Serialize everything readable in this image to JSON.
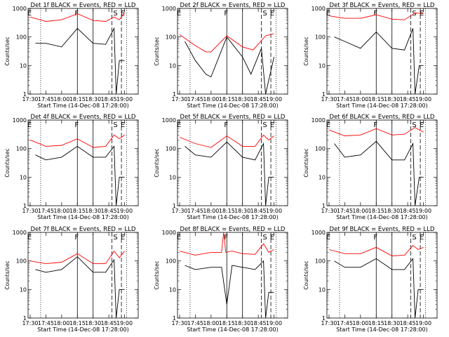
{
  "figure": {
    "xlabel": "Start Time (14-Dec-08 17:28:00)",
    "ylabel": "Counts/sec"
  },
  "colors": {
    "events": "#000000",
    "lld": "#ff0000"
  },
  "chart_data": [
    {
      "type": "line",
      "title": "Det 1f BLACK = Events, RED = LLD",
      "xlabel": "Start Time (14-Dec-08 17:28:00)",
      "ylabel": "Counts/sec",
      "yscale": "log",
      "ylim": [
        1,
        1000
      ],
      "x_ticks": [
        "17:30",
        "17:45",
        "18:00",
        "18:15",
        "18:30",
        "18:45",
        "19:00"
      ],
      "y_ticks": [
        "1",
        "10",
        "100",
        "1000"
      ],
      "markers": [
        {
          "label": "E",
          "x": "17:30"
        },
        {
          "label": "F",
          "x": "18:15"
        },
        {
          "label": "S",
          "x": "18:52"
        },
        {
          "label": "E",
          "x": "18:59"
        }
      ],
      "series": [
        {
          "color": "#000000",
          "x": [
            "17:35",
            "17:45",
            "18:00",
            "18:15",
            "18:30",
            "18:42",
            "18:50",
            "18:52",
            "18:55",
            "19:00"
          ],
          "y": [
            60,
            60,
            45,
            200,
            60,
            55,
            200,
            1,
            15,
            15
          ]
        },
        {
          "color": "#ff0000",
          "x": [
            "17:30",
            "17:45",
            "18:00",
            "18:15",
            "18:30",
            "18:42",
            "18:50",
            "18:55",
            "19:00"
          ],
          "y": [
            500,
            350,
            400,
            650,
            380,
            350,
            500,
            400,
            700
          ]
        }
      ]
    },
    {
      "type": "line",
      "title": "Det 2f BLACK = Events, RED = LLD",
      "xlabel": "Start Time (14-Dec-08 17:28:00)",
      "ylabel": "Counts/sec",
      "yscale": "log",
      "ylim": [
        1,
        1000
      ],
      "x_ticks": [
        "17:30",
        "17:45",
        "18:00",
        "18:15",
        "18:30",
        "18:45",
        "19:00"
      ],
      "y_ticks": [
        "1",
        "10",
        "100",
        "1000"
      ],
      "markers": [
        {
          "label": "E",
          "x": "17:30"
        },
        {
          "label": "F",
          "x": "18:15"
        },
        {
          "label": "S",
          "x": "18:52"
        },
        {
          "label": "E",
          "x": "18:59"
        }
      ],
      "series": [
        {
          "color": "#000000",
          "x": [
            "17:35",
            "17:45",
            "17:55",
            "18:00",
            "18:15",
            "18:30",
            "18:38",
            "18:48",
            "18:52",
            "19:00"
          ],
          "y": [
            70,
            15,
            5,
            4,
            100,
            20,
            5,
            40,
            1,
            20
          ]
        },
        {
          "color": "#ff0000",
          "x": [
            "17:30",
            "17:45",
            "17:55",
            "18:00",
            "18:15",
            "18:30",
            "18:40",
            "18:52",
            "19:00"
          ],
          "y": [
            120,
            50,
            30,
            30,
            110,
            45,
            35,
            110,
            130
          ]
        }
      ]
    },
    {
      "type": "line",
      "title": "Det 3f BLACK = Events, RED = LLD",
      "xlabel": "Start Time (14-Dec-08 17:28:00)",
      "ylabel": "Counts/sec",
      "yscale": "log",
      "ylim": [
        1,
        1000
      ],
      "x_ticks": [
        "17:30",
        "17:45",
        "18:00",
        "18:15",
        "18:30",
        "18:45",
        "19:00"
      ],
      "y_ticks": [
        "1",
        "10",
        "100",
        "1000"
      ],
      "markers": [
        {
          "label": "E",
          "x": "17:30"
        },
        {
          "label": "F",
          "x": "18:15"
        },
        {
          "label": "S",
          "x": "18:52"
        },
        {
          "label": "E",
          "x": "18:59"
        }
      ],
      "series": [
        {
          "color": "#000000",
          "x": [
            "17:35",
            "17:45",
            "18:00",
            "18:15",
            "18:30",
            "18:42",
            "18:50",
            "18:52",
            "18:56",
            "19:00"
          ],
          "y": [
            100,
            70,
            40,
            150,
            40,
            35,
            200,
            1,
            10,
            10
          ]
        },
        {
          "color": "#ff0000",
          "x": [
            "17:30",
            "17:45",
            "18:00",
            "18:15",
            "18:30",
            "18:42",
            "18:52",
            "19:00"
          ],
          "y": [
            550,
            450,
            450,
            600,
            420,
            400,
            700,
            650
          ]
        }
      ]
    },
    {
      "type": "line",
      "title": "Det 4f BLACK = Events, RED = LLD",
      "xlabel": "Start Time (14-Dec-08 17:28:00)",
      "ylabel": "Counts/sec",
      "yscale": "log",
      "ylim": [
        1,
        1000
      ],
      "x_ticks": [
        "17:30",
        "17:45",
        "18:00",
        "18:15",
        "18:30",
        "18:45",
        "19:00"
      ],
      "y_ticks": [
        "1",
        "10",
        "100",
        "1000"
      ],
      "markers": [
        {
          "label": "E",
          "x": "17:30"
        },
        {
          "label": "F",
          "x": "18:15"
        },
        {
          "label": "S",
          "x": "18:52"
        },
        {
          "label": "E",
          "x": "18:59"
        }
      ],
      "series": [
        {
          "color": "#000000",
          "x": [
            "17:35",
            "17:45",
            "18:00",
            "18:15",
            "18:30",
            "18:42",
            "18:50",
            "18:52",
            "18:55",
            "19:00"
          ],
          "y": [
            60,
            40,
            50,
            120,
            50,
            50,
            120,
            1,
            10,
            10
          ]
        },
        {
          "color": "#ff0000",
          "x": [
            "17:30",
            "17:45",
            "18:00",
            "18:15",
            "18:30",
            "18:42",
            "18:50",
            "18:55",
            "19:00"
          ],
          "y": [
            200,
            120,
            130,
            220,
            110,
            120,
            300,
            220,
            300
          ]
        }
      ]
    },
    {
      "type": "line",
      "title": "Det 5f BLACK = Events, RED = LLD",
      "xlabel": "Start Time (14-Dec-08 17:28:00)",
      "ylabel": "Counts/sec",
      "yscale": "log",
      "ylim": [
        1,
        1000
      ],
      "x_ticks": [
        "17:30",
        "17:45",
        "18:00",
        "18:15",
        "18:30",
        "18:45",
        "19:00"
      ],
      "y_ticks": [
        "1",
        "10",
        "100",
        "1000"
      ],
      "markers": [
        {
          "label": "E",
          "x": "17:30"
        },
        {
          "label": "F",
          "x": "18:15"
        },
        {
          "label": "S",
          "x": "18:52"
        },
        {
          "label": "E",
          "x": "18:59"
        }
      ],
      "series": [
        {
          "color": "#000000",
          "x": [
            "17:35",
            "17:45",
            "18:00",
            "18:15",
            "18:30",
            "18:42",
            "18:50",
            "18:52",
            "18:55",
            "19:00"
          ],
          "y": [
            120,
            60,
            50,
            170,
            50,
            40,
            150,
            1,
            10,
            10
          ]
        },
        {
          "color": "#ff0000",
          "x": [
            "17:30",
            "17:45",
            "18:00",
            "18:15",
            "18:30",
            "18:42",
            "18:50",
            "18:55",
            "19:00"
          ],
          "y": [
            250,
            150,
            110,
            280,
            120,
            120,
            300,
            200,
            280
          ]
        }
      ]
    },
    {
      "type": "line",
      "title": "Det 6f BLACK = Events, RED = LLD",
      "xlabel": "Start Time (14-Dec-08 17:28:00)",
      "ylabel": "Counts/sec",
      "yscale": "log",
      "ylim": [
        1,
        1000
      ],
      "x_ticks": [
        "17:30",
        "17:45",
        "18:00",
        "18:15",
        "18:30",
        "18:45",
        "19:00"
      ],
      "y_ticks": [
        "1",
        "10",
        "100",
        "1000"
      ],
      "markers": [
        {
          "label": "E",
          "x": "17:30"
        },
        {
          "label": "F",
          "x": "18:15"
        },
        {
          "label": "S",
          "x": "18:52"
        },
        {
          "label": "E",
          "x": "18:59"
        }
      ],
      "series": [
        {
          "color": "#000000",
          "x": [
            "17:35",
            "17:45",
            "18:00",
            "18:15",
            "18:30",
            "18:42",
            "18:50",
            "18:52",
            "18:56",
            "19:00"
          ],
          "y": [
            150,
            50,
            60,
            180,
            40,
            40,
            150,
            1,
            10,
            10
          ]
        },
        {
          "color": "#ff0000",
          "x": [
            "17:30",
            "17:45",
            "18:00",
            "18:15",
            "18:30",
            "18:42",
            "18:52",
            "19:00"
          ],
          "y": [
            450,
            280,
            300,
            500,
            300,
            320,
            550,
            380
          ]
        }
      ]
    },
    {
      "type": "line",
      "title": "Det 7f BLACK = Events, RED = LLD",
      "xlabel": "Start Time (14-Dec-08 17:28:00)",
      "ylabel": "Counts/sec",
      "yscale": "log",
      "ylim": [
        1,
        1000
      ],
      "x_ticks": [
        "17:30",
        "17:45",
        "18:00",
        "18:15",
        "18:30",
        "18:45",
        "19:00"
      ],
      "y_ticks": [
        "1",
        "10",
        "100",
        "1000"
      ],
      "markers": [
        {
          "label": "E",
          "x": "17:30"
        },
        {
          "label": "F",
          "x": "18:15"
        },
        {
          "label": "S",
          "x": "18:52"
        },
        {
          "label": "E",
          "x": "18:59"
        }
      ],
      "series": [
        {
          "color": "#000000",
          "x": [
            "17:35",
            "17:45",
            "18:00",
            "18:15",
            "18:30",
            "18:42",
            "18:50",
            "18:52",
            "18:55",
            "19:00"
          ],
          "y": [
            50,
            40,
            50,
            140,
            40,
            40,
            110,
            1,
            10,
            10
          ]
        },
        {
          "color": "#ff0000",
          "x": [
            "17:30",
            "17:45",
            "18:00",
            "18:15",
            "18:30",
            "18:42",
            "18:50",
            "18:55",
            "19:00"
          ],
          "y": [
            100,
            80,
            90,
            180,
            80,
            80,
            220,
            130,
            220
          ]
        }
      ]
    },
    {
      "type": "line",
      "title": "Det 8f BLACK = Events, RED = LLD",
      "xlabel": "Start Time (14-Dec-08 17:28:00)",
      "ylabel": "Counts/sec",
      "yscale": "log",
      "ylim": [
        1,
        1000
      ],
      "x_ticks": [
        "17:30",
        "17:45",
        "18:00",
        "18:15",
        "18:30",
        "18:45",
        "19:00"
      ],
      "y_ticks": [
        "1",
        "10",
        "100",
        "1000"
      ],
      "markers": [
        {
          "label": "E",
          "x": "17:30"
        },
        {
          "label": "F",
          "x": "18:15"
        },
        {
          "label": "S",
          "x": "18:52"
        },
        {
          "label": "E",
          "x": "18:59"
        }
      ],
      "series": [
        {
          "color": "#000000",
          "x": [
            "17:35",
            "17:45",
            "18:00",
            "18:10",
            "18:15",
            "18:20",
            "18:30",
            "18:42",
            "18:50",
            "18:52",
            "18:55",
            "19:00"
          ],
          "y": [
            70,
            50,
            60,
            60,
            3,
            70,
            60,
            50,
            100,
            1,
            8,
            8
          ]
        },
        {
          "color": "#ff0000",
          "x": [
            "17:30",
            "17:45",
            "18:00",
            "18:10",
            "18:12",
            "18:14",
            "18:20",
            "18:30",
            "18:42",
            "18:50",
            "18:55",
            "19:00"
          ],
          "y": [
            220,
            160,
            200,
            200,
            1000,
            200,
            220,
            180,
            170,
            400,
            200,
            250
          ]
        }
      ]
    },
    {
      "type": "line",
      "title": "Det 9f BLACK = Events, RED = LLD",
      "xlabel": "Start Time (14-Dec-08 17:28:00)",
      "ylabel": "Counts/sec",
      "yscale": "log",
      "ylim": [
        1,
        1000
      ],
      "x_ticks": [
        "17:30",
        "17:45",
        "18:00",
        "18:15",
        "18:30",
        "18:45",
        "19:00"
      ],
      "y_ticks": [
        "1",
        "10",
        "100",
        "1000"
      ],
      "markers": [
        {
          "label": "E",
          "x": "17:30"
        },
        {
          "label": "F",
          "x": "18:15"
        },
        {
          "label": "S",
          "x": "18:52"
        },
        {
          "label": "E",
          "x": "18:59"
        }
      ],
      "series": [
        {
          "color": "#000000",
          "x": [
            "17:35",
            "17:45",
            "18:00",
            "18:15",
            "18:30",
            "18:42",
            "18:50",
            "18:52",
            "18:55",
            "19:00"
          ],
          "y": [
            100,
            60,
            60,
            120,
            50,
            50,
            120,
            1,
            10,
            10
          ]
        },
        {
          "color": "#ff0000",
          "x": [
            "17:30",
            "17:45",
            "18:00",
            "18:15",
            "18:30",
            "18:42",
            "18:50",
            "18:55",
            "19:00"
          ],
          "y": [
            250,
            180,
            180,
            300,
            150,
            160,
            350,
            250,
            300
          ]
        }
      ]
    }
  ]
}
